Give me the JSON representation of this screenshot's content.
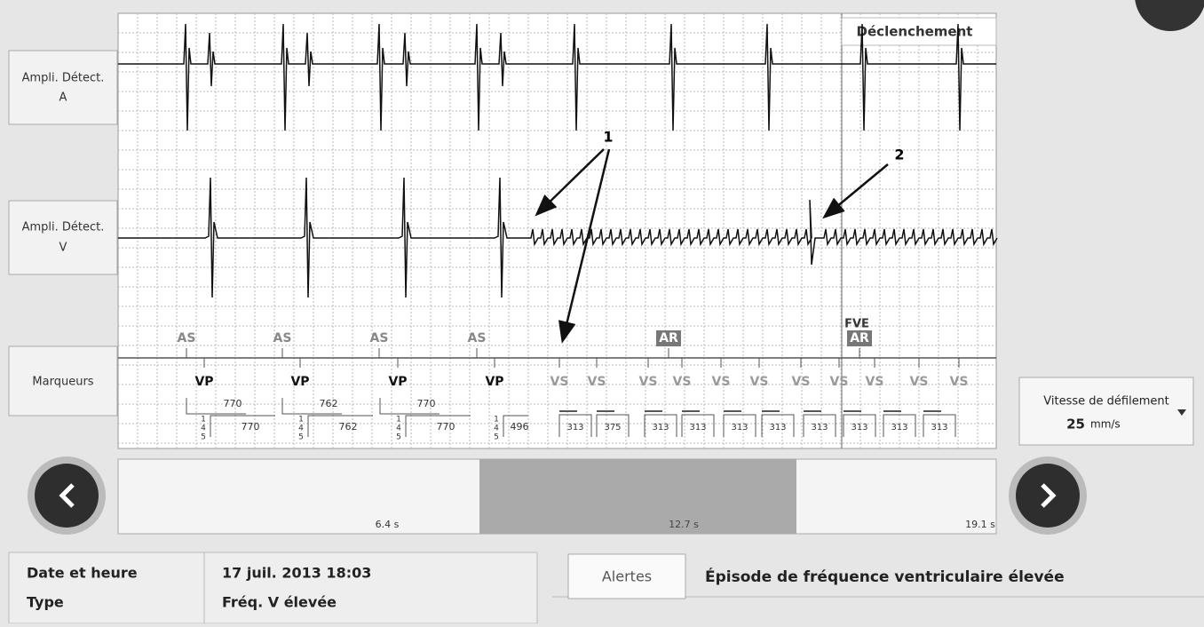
{
  "channels": {
    "a": [
      "Ampli. Détect.",
      "A"
    ],
    "v": [
      "Ampli. Détect.",
      "V"
    ],
    "markers": "Marqueurs"
  },
  "trigger_label": "Déclenchement",
  "annotations": [
    "1",
    "2"
  ],
  "markers": {
    "atrial": [
      "AS",
      "AS",
      "AS",
      "AS",
      "AR",
      "AR"
    ],
    "fve": "FVE",
    "ventricular": [
      "VP",
      "VP",
      "VP",
      "VP",
      "VS",
      "VS",
      "VS",
      "VS",
      "VS",
      "VS",
      "VS",
      "VS",
      "VS",
      "VS",
      "VS"
    ],
    "aa_intervals": [
      "770",
      "762",
      "770"
    ],
    "vv_intervals": [
      "770",
      "762",
      "770",
      "496",
      "313",
      "375",
      "313",
      "313",
      "313",
      "313",
      "313",
      "313",
      "313",
      "313"
    ],
    "sequence": [
      "1",
      "4",
      "5"
    ]
  },
  "timeline": [
    "6.4 s",
    "12.7 s",
    "19.1 s"
  ],
  "speed": {
    "label": "Vitesse de défilement",
    "value": "25",
    "unit": "mm/s"
  },
  "info": {
    "date_label": "Date et heure",
    "date": "17 juil. 2013 18:03",
    "type_label": "Type",
    "type": "Fréq. V élevée"
  },
  "alerts": {
    "button": "Alertes",
    "text": "Épisode de fréquence ventriculaire élevée"
  }
}
